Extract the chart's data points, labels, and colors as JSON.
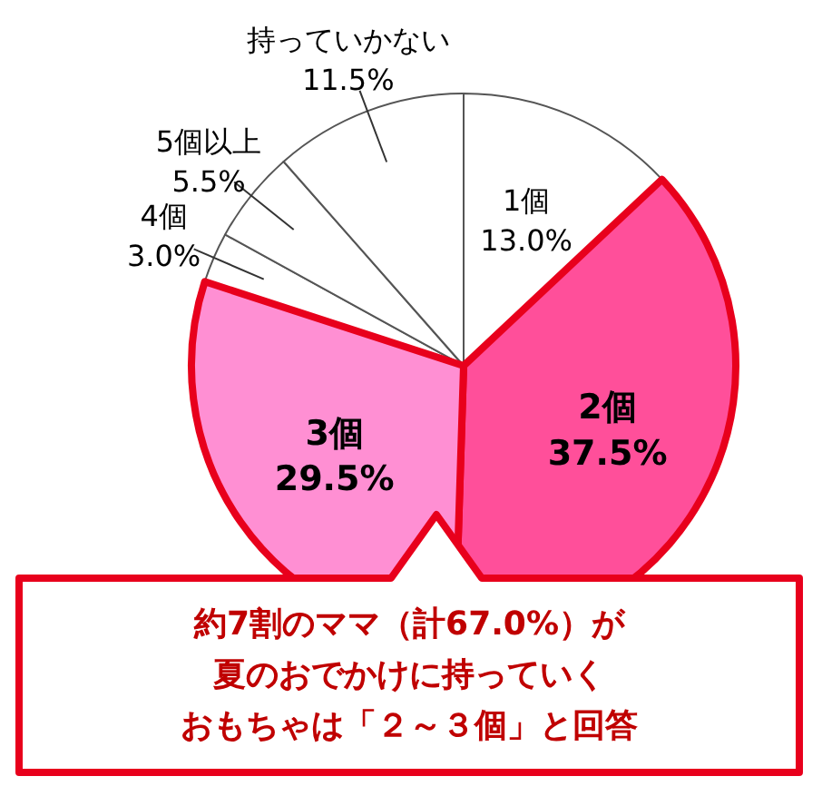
{
  "chart_data": {
    "type": "pie",
    "categories": [
      "1個",
      "2個",
      "3個",
      "4個",
      "5個以上",
      "持っていかない"
    ],
    "values": [
      13.0,
      37.5,
      29.5,
      3.0,
      5.5,
      11.5
    ],
    "colors": [
      "#ffffff",
      "#ff4f9a",
      "#ff8fd3",
      "#ffffff",
      "#ffffff",
      "#ffffff"
    ],
    "value_labels": [
      "13.0%",
      "37.5%",
      "29.5%",
      "3.0%",
      "5.5%",
      "11.5%"
    ],
    "annotations": [
      "約7割のママ（計67.0%）が",
      "夏のおでかけに持っていく",
      "おもちゃは「２～３個」と回答"
    ]
  }
}
